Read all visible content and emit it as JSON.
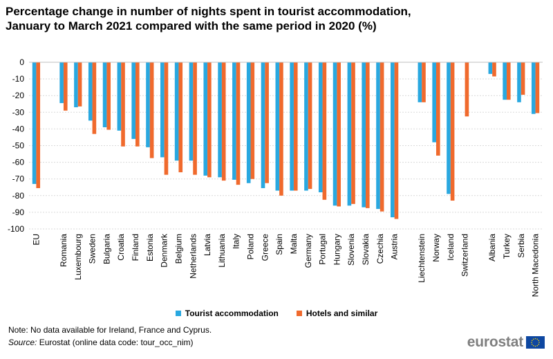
{
  "header": {
    "title_line1": "Percentage change in number of nights spent in tourist accommodation,",
    "title_line2": "January to March 2021 compared with the same period in 2020 (%)"
  },
  "legend": {
    "series1": "Tourist accommodation",
    "series2": "Hotels and similar"
  },
  "footer": {
    "note": "Note: No data available for Ireland, France and Cyprus.",
    "source_label": "Source:",
    "source_text": " Eurostat (online data code: tour_occ_nim)",
    "logo_text": "eurostat"
  },
  "colors": {
    "series1": "#29a8e0",
    "series2": "#f06a2d",
    "grid": "#d9d9d9",
    "axis": "#bfbfbf"
  },
  "chart_data": {
    "type": "bar",
    "title": "Percentage change in number of nights spent in tourist accommodation, January to March 2021 compared with the same period in 2020 (%)",
    "xlabel": "",
    "ylabel": "",
    "ylim": [
      -100,
      0
    ],
    "yticks": [
      0,
      -10,
      -20,
      -30,
      -40,
      -50,
      -60,
      -70,
      -80,
      -90,
      -100
    ],
    "grid": true,
    "legend_position": "bottom",
    "categories": [
      "EU",
      "Romania",
      "Luxembourg",
      "Sweden",
      "Bulgaria",
      "Croatia",
      "Finland",
      "Estonia",
      "Denmark",
      "Belgium",
      "Netherlands",
      "Latvia",
      "Lithuania",
      "Italy",
      "Poland",
      "Greece",
      "Spain",
      "Malta",
      "Germany",
      "Portugal",
      "Hungary",
      "Slovenia",
      "Slovakia",
      "Czechia",
      "Austria",
      "Liechtenstein",
      "Norway",
      "Iceland",
      "Switzerland",
      "Albania",
      "Turkey",
      "Serbia",
      "North Macedonia"
    ],
    "groups_after_index": [
      0,
      24,
      28
    ],
    "series": [
      {
        "name": "Tourist accommodation",
        "values": [
          -73,
          -24.5,
          -27,
          -35,
          -39,
          -41,
          -46,
          -51,
          -57,
          -59,
          -59,
          -68,
          -69,
          -70.5,
          -72.5,
          -75.5,
          -77,
          -77,
          -77,
          -78,
          -86,
          -86,
          -87,
          -88,
          -93,
          -24,
          -48,
          -79,
          null,
          -7,
          -22.5,
          -24,
          -31
        ]
      },
      {
        "name": "Hotels and similar",
        "values": [
          -75.5,
          -29,
          -26.5,
          -43,
          -40.5,
          -50.5,
          -50.5,
          -57.5,
          -67.5,
          -66,
          -67.5,
          -69,
          -71,
          -73.5,
          -70,
          -72.5,
          -80,
          -77,
          -76,
          -82.5,
          -86.5,
          -85,
          -87.5,
          -89.5,
          -94,
          -24,
          -56,
          -83,
          -32.5,
          -8.5,
          -22.5,
          -19.5,
          -30.5
        ]
      }
    ]
  }
}
